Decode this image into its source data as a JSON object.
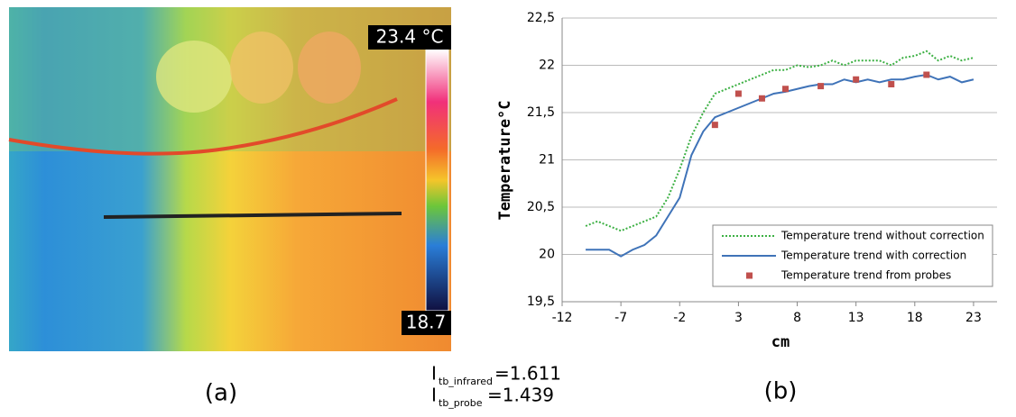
{
  "panel_a": {
    "scale_max": "23.4 °C",
    "scale_min": "18.7",
    "caption": "(a)"
  },
  "indices": [
    {
      "symbol": "I",
      "subscript": "tb_infrared",
      "text": "=1.611"
    },
    {
      "symbol": "I",
      "subscript": "tb_probe",
      "text": "=1.439"
    }
  ],
  "chart_data": {
    "type": "line",
    "caption": "(b)",
    "x_label": "cm",
    "y_label": "Temperature°C",
    "xlim": [
      -12,
      25
    ],
    "xticks": [
      -12,
      -7,
      -2,
      3,
      8,
      13,
      18,
      23
    ],
    "ylim": [
      19.5,
      22.5
    ],
    "yticks": [
      {
        "value": 19.5,
        "label": "19,5"
      },
      20,
      {
        "value": 20.5,
        "label": "20,5"
      },
      21,
      {
        "value": 21.5,
        "label": "21,5"
      },
      22,
      {
        "value": 22.5,
        "label": "22,5"
      }
    ],
    "grid": true,
    "series": [
      {
        "name": "Temperature trend without correction",
        "color": "#3cb043",
        "style": "dotted",
        "x": [
          -10,
          -9,
          -8,
          -7,
          -6,
          -5,
          -4,
          -3,
          -2,
          -1,
          0,
          1,
          2,
          3,
          4,
          5,
          6,
          7,
          8,
          9,
          10,
          11,
          12,
          13,
          14,
          15,
          16,
          17,
          18,
          19,
          20,
          21,
          22,
          23
        ],
        "values": [
          20.3,
          20.35,
          20.3,
          20.25,
          20.3,
          20.35,
          20.4,
          20.6,
          20.9,
          21.25,
          21.5,
          21.7,
          21.75,
          21.8,
          21.85,
          21.9,
          21.95,
          21.95,
          22.0,
          21.98,
          22.0,
          22.05,
          22.0,
          22.05,
          22.05,
          22.05,
          22.0,
          22.08,
          22.1,
          22.15,
          22.05,
          22.1,
          22.05,
          22.08
        ]
      },
      {
        "name": "Temperature trend with correction",
        "color": "#3f73b8",
        "style": "solid",
        "x": [
          -10,
          -9,
          -8,
          -7,
          -6,
          -5,
          -4,
          -3,
          -2,
          -1,
          0,
          1,
          2,
          3,
          4,
          5,
          6,
          7,
          8,
          9,
          10,
          11,
          12,
          13,
          14,
          15,
          16,
          17,
          18,
          19,
          20,
          21,
          22,
          23
        ],
        "values": [
          20.05,
          20.05,
          20.05,
          19.98,
          20.05,
          20.1,
          20.2,
          20.4,
          20.6,
          21.05,
          21.3,
          21.45,
          21.5,
          21.55,
          21.6,
          21.65,
          21.7,
          21.72,
          21.75,
          21.78,
          21.8,
          21.8,
          21.85,
          21.82,
          21.85,
          21.82,
          21.85,
          21.85,
          21.88,
          21.9,
          21.85,
          21.88,
          21.82,
          21.85
        ]
      },
      {
        "name": "Temperature trend from probes",
        "color": "#c0504d",
        "style": "markers",
        "x": [
          1,
          3,
          5,
          7,
          10,
          13,
          16,
          19
        ],
        "values": [
          21.37,
          21.7,
          21.65,
          21.75,
          21.78,
          21.85,
          21.8,
          21.9
        ]
      }
    ]
  }
}
